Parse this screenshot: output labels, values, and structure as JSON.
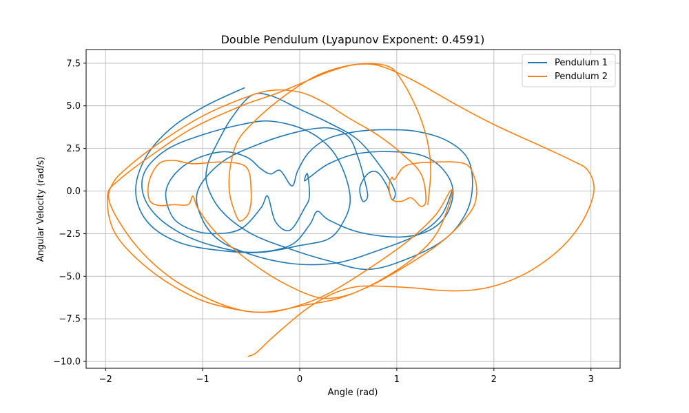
{
  "chart_data": {
    "type": "line",
    "title": "Double Pendulum (Lyapunov Exponent: 0.4591)",
    "xlabel": "Angle (rad)",
    "ylabel": "Angular Velocity (rad/s)",
    "xlim": [
      -2.2,
      3.3
    ],
    "ylim": [
      -10.4,
      8.3
    ],
    "xticks": [
      -2,
      -1,
      0,
      1,
      2,
      3
    ],
    "xtick_labels": [
      "−2",
      "−1",
      "0",
      "1",
      "2",
      "3"
    ],
    "yticks": [
      7.5,
      5.0,
      2.5,
      0.0,
      -2.5,
      -5.0,
      -7.5,
      -10.0
    ],
    "ytick_labels": [
      "7.5",
      "5.0",
      "2.5",
      "0.0",
      "−2.5",
      "−5.0",
      "−7.5",
      "−10.0"
    ],
    "grid": true,
    "legend_position": "top-right",
    "series": [
      {
        "name": "Pendulum 1",
        "color": "#1f77b4",
        "points": [
          [
            -0.57,
            6.05
          ],
          [
            -0.75,
            5.6
          ],
          [
            -1.0,
            4.9
          ],
          [
            -1.3,
            3.8
          ],
          [
            -1.55,
            2.3
          ],
          [
            -1.68,
            0.6
          ],
          [
            -1.66,
            -0.9
          ],
          [
            -1.5,
            -2.2
          ],
          [
            -1.2,
            -3.1
          ],
          [
            -0.8,
            -3.5
          ],
          [
            -0.4,
            -3.6
          ],
          [
            0.0,
            -3.2
          ],
          [
            0.3,
            -2.8
          ],
          [
            0.45,
            -1.8
          ],
          [
            0.52,
            -0.5
          ],
          [
            0.45,
            1.2
          ],
          [
            0.3,
            2.6
          ],
          [
            0.05,
            3.6
          ],
          [
            -0.3,
            4.1
          ],
          [
            -0.6,
            3.9
          ],
          [
            -1.0,
            3.3
          ],
          [
            -1.35,
            2.5
          ],
          [
            -1.58,
            1.3
          ],
          [
            -1.62,
            0.0
          ],
          [
            -1.5,
            -1.3
          ],
          [
            -1.25,
            -2.4
          ],
          [
            -0.9,
            -3.2
          ],
          [
            -0.5,
            -3.6
          ],
          [
            -0.1,
            -3.2
          ],
          [
            0.1,
            -2.0
          ],
          [
            0.18,
            -1.2
          ],
          [
            0.3,
            -1.7
          ],
          [
            0.6,
            -2.4
          ],
          [
            1.0,
            -2.7
          ],
          [
            1.3,
            -2.4
          ],
          [
            1.5,
            -1.5
          ],
          [
            1.58,
            -0.1
          ],
          [
            1.5,
            1.1
          ],
          [
            1.3,
            2.0
          ],
          [
            1.0,
            2.3
          ],
          [
            0.6,
            2.2
          ],
          [
            0.3,
            1.6
          ],
          [
            0.1,
            0.8
          ],
          [
            0.05,
            0.6
          ],
          [
            0.08,
            1.0
          ],
          [
            0.1,
            -0.3
          ],
          [
            0.05,
            -1.0
          ],
          [
            -0.1,
            -2.3
          ],
          [
            -0.25,
            -1.8
          ],
          [
            -0.33,
            -0.3
          ],
          [
            -0.4,
            -1.0
          ],
          [
            -0.6,
            -2.2
          ],
          [
            -0.85,
            -2.5
          ],
          [
            -1.1,
            -2.3
          ],
          [
            -1.3,
            -1.6
          ],
          [
            -1.38,
            -0.2
          ],
          [
            -1.3,
            0.9
          ],
          [
            -1.1,
            1.8
          ],
          [
            -0.8,
            2.3
          ],
          [
            -0.55,
            2.0
          ],
          [
            -0.4,
            1.3
          ],
          [
            -0.3,
            1.0
          ],
          [
            -0.2,
            1.2
          ],
          [
            -0.08,
            0.3
          ],
          [
            -0.02,
            1.2
          ],
          [
            0.1,
            2.3
          ],
          [
            0.3,
            3.1
          ],
          [
            0.6,
            3.5
          ],
          [
            0.9,
            3.6
          ],
          [
            1.2,
            3.5
          ],
          [
            1.5,
            3.0
          ],
          [
            1.72,
            2.0
          ],
          [
            1.78,
            0.5
          ],
          [
            1.72,
            -1.2
          ],
          [
            1.5,
            -2.8
          ],
          [
            1.1,
            -4.0
          ],
          [
            0.7,
            -4.6
          ],
          [
            0.3,
            -4.1
          ],
          [
            -0.1,
            -3.4
          ],
          [
            -0.5,
            -2.5
          ],
          [
            -0.8,
            -1.2
          ],
          [
            -0.95,
            0.3
          ],
          [
            -0.95,
            1.5
          ],
          [
            -0.85,
            2.8
          ],
          [
            -0.7,
            4.3
          ],
          [
            -0.5,
            5.6
          ],
          [
            -0.3,
            5.6
          ],
          [
            0.0,
            4.8
          ],
          [
            0.3,
            4.0
          ],
          [
            0.6,
            3.0
          ],
          [
            0.85,
            1.3
          ],
          [
            0.98,
            0.0
          ],
          [
            0.95,
            -0.5
          ],
          [
            0.9,
            0.3
          ],
          [
            0.8,
            1.1
          ],
          [
            0.7,
            1.0
          ],
          [
            0.62,
            0.2
          ],
          [
            0.65,
            -0.6
          ],
          [
            0.7,
            -0.3
          ],
          [
            0.67,
            0.6
          ],
          [
            0.6,
            2.0
          ],
          [
            0.5,
            3.2
          ],
          [
            0.3,
            3.7
          ],
          [
            0.0,
            3.5
          ],
          [
            -0.4,
            2.8
          ],
          [
            -0.8,
            1.7
          ],
          [
            -1.05,
            0.0
          ],
          [
            -1.0,
            -1.7
          ],
          [
            -0.8,
            -3.0
          ],
          [
            -0.4,
            -3.9
          ],
          [
            0.0,
            -4.3
          ],
          [
            0.4,
            -4.2
          ],
          [
            0.8,
            -3.5
          ],
          [
            1.2,
            -2.6
          ],
          [
            1.45,
            -1.5
          ],
          [
            1.57,
            0.0
          ]
        ]
      },
      {
        "name": "Pendulum 2",
        "color": "#ff7f0e",
        "points": [
          [
            -0.53,
            -9.7
          ],
          [
            -0.45,
            -9.5
          ],
          [
            -0.3,
            -8.7
          ],
          [
            -0.1,
            -7.7
          ],
          [
            0.1,
            -6.8
          ],
          [
            0.35,
            -6.0
          ],
          [
            0.6,
            -5.6
          ],
          [
            0.9,
            -5.6
          ],
          [
            1.2,
            -5.7
          ],
          [
            1.5,
            -5.85
          ],
          [
            1.8,
            -5.8
          ],
          [
            2.1,
            -5.4
          ],
          [
            2.4,
            -4.6
          ],
          [
            2.7,
            -3.3
          ],
          [
            2.92,
            -1.7
          ],
          [
            3.03,
            0.0
          ],
          [
            2.97,
            1.2
          ],
          [
            2.8,
            1.8
          ],
          [
            2.5,
            2.6
          ],
          [
            2.0,
            3.9
          ],
          [
            1.6,
            5.1
          ],
          [
            1.2,
            6.4
          ],
          [
            0.9,
            7.2
          ],
          [
            0.7,
            7.45
          ],
          [
            0.45,
            7.3
          ],
          [
            0.15,
            6.7
          ],
          [
            -0.2,
            5.4
          ],
          [
            -0.5,
            3.9
          ],
          [
            -0.65,
            2.8
          ],
          [
            -0.72,
            1.2
          ],
          [
            -0.72,
            -0.2
          ],
          [
            -0.65,
            -1.5
          ],
          [
            -0.6,
            -1.75
          ],
          [
            -0.52,
            -1.2
          ],
          [
            -0.5,
            0.0
          ],
          [
            -0.55,
            1.4
          ],
          [
            -0.8,
            1.7
          ],
          [
            -1.1,
            1.6
          ],
          [
            -1.3,
            1.8
          ],
          [
            -1.45,
            1.6
          ],
          [
            -1.55,
            0.6
          ],
          [
            -1.55,
            -0.5
          ],
          [
            -1.45,
            -0.85
          ],
          [
            -1.3,
            -0.8
          ],
          [
            -1.15,
            -0.8
          ],
          [
            -1.1,
            -0.3
          ],
          [
            -1.05,
            -1.0
          ],
          [
            -0.9,
            -2.2
          ],
          [
            -0.7,
            -3.3
          ],
          [
            -0.45,
            -4.4
          ],
          [
            -0.2,
            -5.3
          ],
          [
            0.1,
            -6.1
          ],
          [
            0.3,
            -6.3
          ],
          [
            0.55,
            -6.0
          ],
          [
            0.9,
            -5.0
          ],
          [
            1.2,
            -3.8
          ],
          [
            1.42,
            -2.4
          ],
          [
            1.56,
            -0.4
          ],
          [
            1.55,
            0.0
          ],
          [
            1.4,
            -1.4
          ],
          [
            1.1,
            -3.0
          ],
          [
            0.7,
            -4.6
          ],
          [
            0.3,
            -6.0
          ],
          [
            0.0,
            -6.7
          ],
          [
            -0.3,
            -7.1
          ],
          [
            -0.6,
            -7.0
          ],
          [
            -0.95,
            -6.3
          ],
          [
            -1.35,
            -5.0
          ],
          [
            -1.7,
            -3.1
          ],
          [
            -1.95,
            -0.8
          ],
          [
            -1.93,
            0.4
          ],
          [
            -1.75,
            1.5
          ],
          [
            -1.4,
            3.0
          ],
          [
            -1.0,
            4.4
          ],
          [
            -0.6,
            5.4
          ],
          [
            -0.3,
            5.9
          ],
          [
            0.0,
            5.8
          ],
          [
            0.25,
            5.2
          ],
          [
            0.5,
            4.3
          ],
          [
            0.8,
            3.3
          ],
          [
            1.05,
            2.2
          ],
          [
            1.25,
            1.0
          ],
          [
            1.3,
            -0.5
          ],
          [
            1.25,
            -0.9
          ],
          [
            1.15,
            -0.4
          ],
          [
            1.05,
            -0.6
          ],
          [
            0.95,
            -0.5
          ],
          [
            0.92,
            0.3
          ],
          [
            0.95,
            0.8
          ],
          [
            0.98,
            0.7
          ],
          [
            1.1,
            1.5
          ],
          [
            1.4,
            1.7
          ],
          [
            1.7,
            1.6
          ],
          [
            1.8,
            0.8
          ],
          [
            1.82,
            -0.3
          ],
          [
            1.75,
            -1.3
          ],
          [
            1.5,
            -2.8
          ],
          [
            1.15,
            -4.2
          ],
          [
            0.75,
            -5.5
          ],
          [
            0.4,
            -6.3
          ],
          [
            0.05,
            -6.7
          ],
          [
            -0.35,
            -7.1
          ],
          [
            -0.7,
            -6.9
          ],
          [
            -1.1,
            -6.2
          ],
          [
            -1.55,
            -4.6
          ],
          [
            -1.9,
            -2.5
          ],
          [
            -1.98,
            -0.3
          ],
          [
            -1.85,
            0.7
          ],
          [
            -1.5,
            2.2
          ],
          [
            -1.1,
            3.7
          ],
          [
            -0.6,
            5.0
          ],
          [
            -0.25,
            5.7
          ],
          [
            0.05,
            6.4
          ],
          [
            0.3,
            7.0
          ],
          [
            0.55,
            7.4
          ],
          [
            0.8,
            7.45
          ],
          [
            0.95,
            7.2
          ],
          [
            1.05,
            6.5
          ],
          [
            1.15,
            5.5
          ],
          [
            1.25,
            4.2
          ],
          [
            1.32,
            2.8
          ],
          [
            1.35,
            1.2
          ],
          [
            1.32,
            -0.8
          ]
        ]
      }
    ]
  }
}
